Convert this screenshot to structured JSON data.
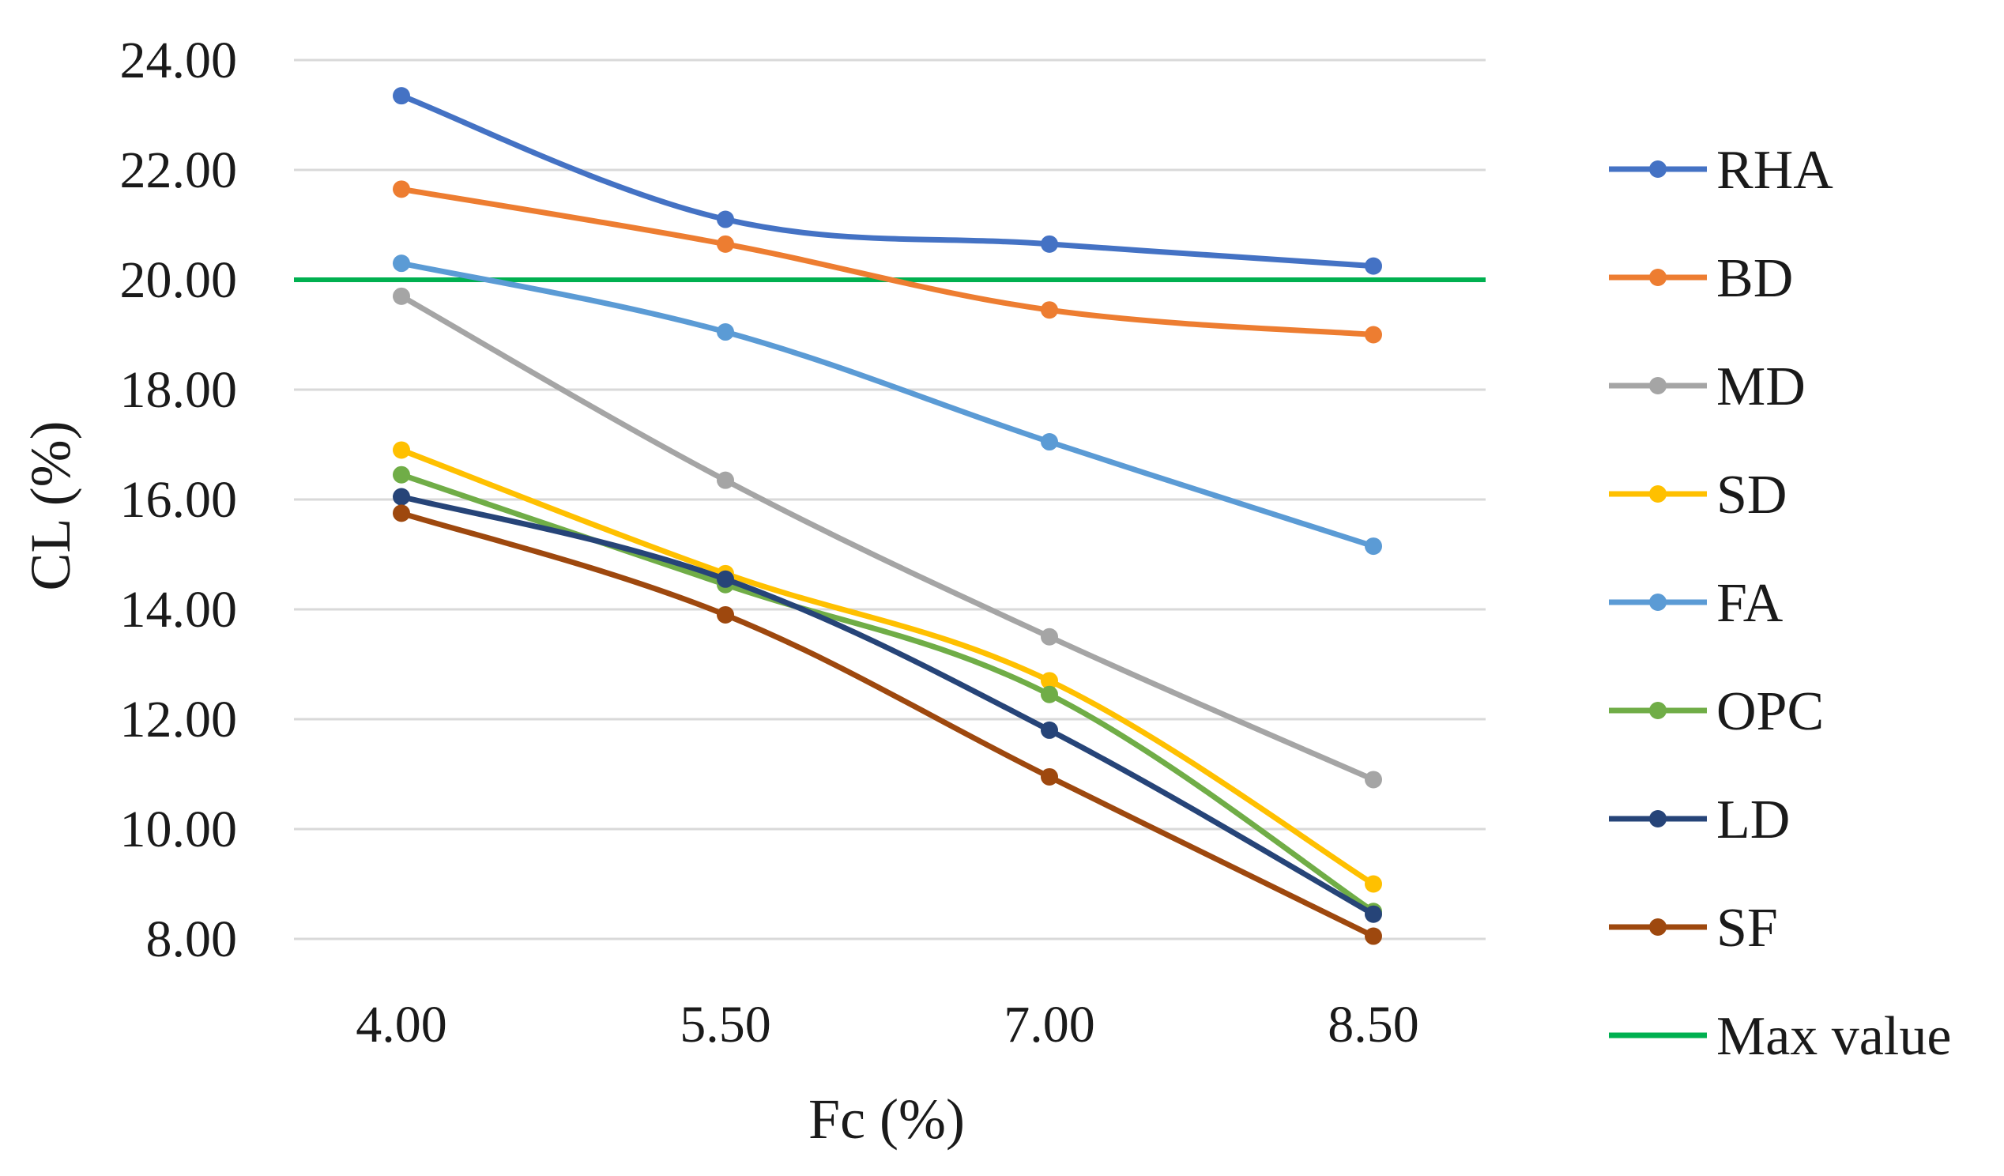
{
  "chart_data": {
    "type": "line",
    "title": "",
    "xlabel": "Fc (%)",
    "ylabel": "CL (%)",
    "x": [
      4.0,
      5.5,
      7.0,
      8.5
    ],
    "x_tick_labels": [
      "4.00",
      "5.50",
      "7.00",
      "8.50"
    ],
    "ylim": [
      8,
      24
    ],
    "y_ticks": [
      8,
      10,
      12,
      14,
      16,
      18,
      20,
      22,
      24
    ],
    "y_tick_labels": [
      "8.00",
      "10.00",
      "12.00",
      "14.00",
      "16.00",
      "18.00",
      "20.00",
      "22.00",
      "24.00"
    ],
    "grid": true,
    "legend_position": "right",
    "series": [
      {
        "name": "RHA",
        "color": "#4472C4",
        "values": [
          23.35,
          21.1,
          20.65,
          20.25
        ]
      },
      {
        "name": "BD",
        "color": "#ED7D31",
        "values": [
          21.65,
          20.65,
          19.45,
          19.0
        ]
      },
      {
        "name": "MD",
        "color": "#A5A5A5",
        "values": [
          19.7,
          16.35,
          13.5,
          10.9
        ]
      },
      {
        "name": "SD",
        "color": "#FFC000",
        "values": [
          16.9,
          14.65,
          12.7,
          9.0
        ]
      },
      {
        "name": "FA",
        "color": "#5B9BD5",
        "values": [
          20.3,
          19.05,
          17.05,
          15.15
        ]
      },
      {
        "name": "OPC",
        "color": "#70AD47",
        "values": [
          16.45,
          14.45,
          12.45,
          8.5
        ]
      },
      {
        "name": "LD",
        "color": "#264478",
        "values": [
          16.05,
          14.55,
          11.8,
          8.45
        ]
      },
      {
        "name": "SF",
        "color": "#9E480E",
        "values": [
          15.75,
          13.9,
          10.95,
          8.05
        ]
      }
    ],
    "reference_line": {
      "name": "Max value",
      "value": 20.0,
      "color": "#00B050"
    }
  }
}
